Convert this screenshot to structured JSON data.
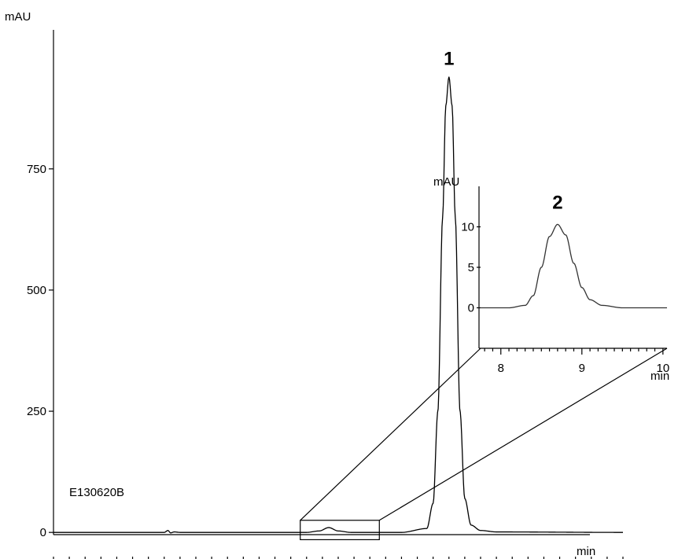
{
  "chart_data": [
    {
      "type": "line",
      "title": "",
      "xlabel": "min",
      "ylabel": "mAU",
      "sample_id": "E130620B",
      "xlim": [
        0,
        18
      ],
      "ylim": [
        -50,
        980
      ],
      "x_ticks": [
        0,
        5,
        10,
        15
      ],
      "y_ticks": [
        0,
        250,
        500,
        750
      ],
      "grid": false,
      "series": [
        {
          "x": [
            0,
            3.5,
            3.62,
            3.7,
            3.82,
            4.0,
            8.0,
            8.4,
            8.7,
            9.0,
            9.4,
            11.0,
            11.8,
            12.0,
            12.15,
            12.3,
            12.4,
            12.5,
            12.6,
            12.7,
            12.85,
            13.0,
            13.2,
            13.5,
            14.0,
            18.0
          ],
          "y": [
            0,
            0,
            4,
            -1,
            1,
            0,
            0,
            3,
            10,
            3,
            0,
            0,
            8,
            60,
            250,
            650,
            880,
            940,
            880,
            650,
            250,
            70,
            15,
            4,
            1,
            0
          ]
        }
      ],
      "peak_labels": [
        {
          "text": "1",
          "x": 12.5,
          "y": 940
        }
      ],
      "zoom_box": {
        "xmin": 7.8,
        "xmax": 10.3,
        "ymin": -15,
        "ymax": 25
      }
    },
    {
      "type": "line",
      "title": "",
      "xlabel": "min",
      "ylabel": "mAU",
      "xlim": [
        7.75,
        10.05
      ],
      "ylim": [
        -5,
        15
      ],
      "x_ticks": [
        8,
        9,
        10
      ],
      "y_ticks": [
        0,
        5,
        10
      ],
      "grid": false,
      "series": [
        {
          "x": [
            7.75,
            8.1,
            8.3,
            8.4,
            8.5,
            8.6,
            8.7,
            8.8,
            8.9,
            9.0,
            9.1,
            9.25,
            9.5,
            10.05
          ],
          "y": [
            0,
            0,
            0.3,
            1.5,
            5.0,
            8.8,
            10.3,
            9.0,
            5.5,
            2.5,
            1.0,
            0.3,
            0,
            0
          ]
        }
      ],
      "peak_labels": [
        {
          "text": "2",
          "x": 8.7,
          "y": 10.3
        }
      ]
    }
  ]
}
